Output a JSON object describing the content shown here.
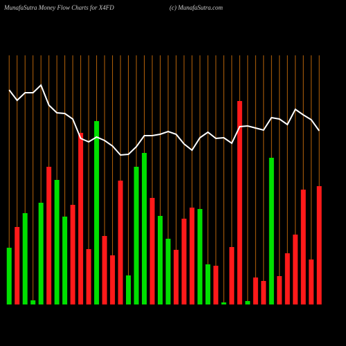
{
  "chart_data": {
    "type": "bar",
    "title": "MunafaSutra  Money Flow  Charts for X4FD",
    "subtitle": "(c) MunafaSutra.com",
    "categories": [
      null,
      null,
      null,
      null,
      null,
      null,
      null,
      null,
      null,
      null,
      null,
      null,
      null,
      null,
      null,
      null,
      null,
      null,
      null,
      null,
      null,
      null,
      null,
      null,
      null,
      null,
      null,
      null,
      null,
      null,
      null,
      null,
      null,
      null,
      null,
      null,
      null,
      null,
      null,
      null
    ],
    "ylim": [
      0,
      360
    ],
    "band_line_color": "#b8640a",
    "series": [
      {
        "kind": "bar",
        "values": [
          82,
          112,
          132,
          6,
          147,
          199,
          180,
          127,
          144,
          248,
          80,
          265,
          99,
          71,
          179,
          42,
          199,
          219,
          154,
          128,
          95,
          79,
          124,
          140,
          138,
          58,
          56,
          3,
          83,
          294,
          5,
          39,
          34,
          212,
          41,
          74,
          101,
          166,
          65,
          171
        ],
        "colors": [
          "#00e000",
          "#ff1a1a",
          "#00e000",
          "#00e000",
          "#00e000",
          "#ff1a1a",
          "#00e000",
          "#00e000",
          "#ff1a1a",
          "#ff1a1a",
          "#ff1a1a",
          "#00e000",
          "#ff1a1a",
          "#ff1a1a",
          "#ff1a1a",
          "#00e000",
          "#00e000",
          "#00e000",
          "#ff1a1a",
          "#00e000",
          "#00e000",
          "#ff1a1a",
          "#ff1a1a",
          "#ff1a1a",
          "#00e000",
          "#00e000",
          "#ff1a1a",
          "#00e000",
          "#ff1a1a",
          "#ff1a1a",
          "#00e000",
          "#ff1a1a",
          "#ff1a1a",
          "#00e000",
          "#ff1a1a",
          "#ff1a1a",
          "#ff1a1a",
          "#ff1a1a",
          "#ff1a1a",
          "#ff1a1a"
        ]
      },
      {
        "kind": "line",
        "color": "#ffffff",
        "values": [
          310,
          295,
          306,
          306,
          317,
          288,
          277,
          276,
          268,
          240,
          235,
          242,
          237,
          229,
          216,
          217,
          228,
          244,
          244,
          246,
          250,
          246,
          232,
          223,
          241,
          249,
          240,
          241,
          233,
          257,
          258,
          255,
          252,
          270,
          268,
          260,
          282,
          274,
          267,
          251
        ]
      }
    ]
  }
}
